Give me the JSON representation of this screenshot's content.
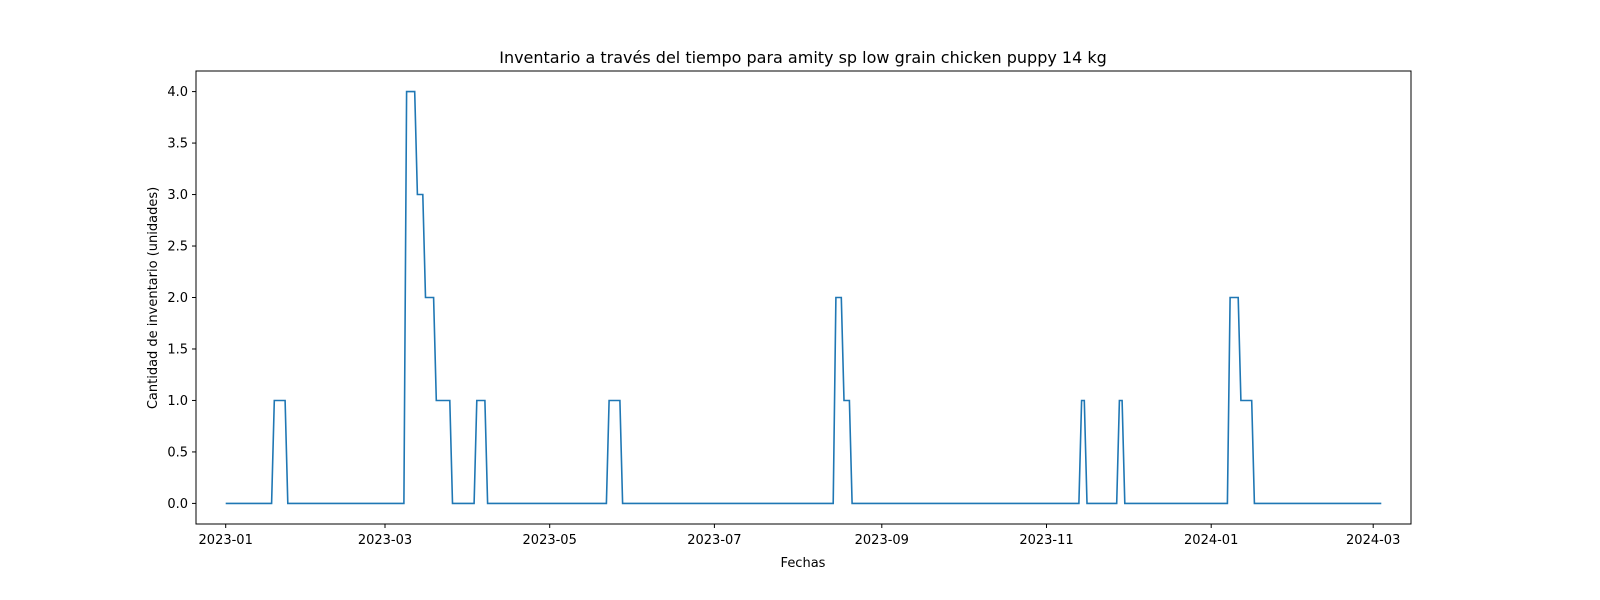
{
  "chart_data": {
    "type": "line",
    "title": "Inventario a través del tiempo para amity sp low grain chicken puppy 14 kg",
    "xlabel": "Fechas",
    "ylabel": "Cantidad de inventario (unidades)",
    "x_axis_type": "date",
    "xlim": [
      "2022-12-21",
      "2024-03-15"
    ],
    "ylim": [
      -0.2,
      4.2
    ],
    "x_ticks": [
      "2023-01-01",
      "2023-03-01",
      "2023-05-01",
      "2023-07-01",
      "2023-09-01",
      "2023-11-01",
      "2024-01-01",
      "2024-03-01"
    ],
    "x_tick_labels": [
      "2023-01",
      "2023-03",
      "2023-05",
      "2023-07",
      "2023-09",
      "2023-11",
      "2024-01",
      "2024-03"
    ],
    "y_ticks": [
      0.0,
      0.5,
      1.0,
      1.5,
      2.0,
      2.5,
      3.0,
      3.5,
      4.0
    ],
    "y_tick_labels": [
      "0.0",
      "0.5",
      "1.0",
      "1.5",
      "2.0",
      "2.5",
      "3.0",
      "3.5",
      "4.0"
    ],
    "grid": false,
    "series": [
      {
        "color": "#1f77b4",
        "points": [
          [
            "2023-01-01",
            0
          ],
          [
            "2023-01-18",
            0
          ],
          [
            "2023-01-19",
            1
          ],
          [
            "2023-01-23",
            1
          ],
          [
            "2023-01-24",
            0
          ],
          [
            "2023-03-08",
            0
          ],
          [
            "2023-03-09",
            4
          ],
          [
            "2023-03-12",
            4
          ],
          [
            "2023-03-13",
            3
          ],
          [
            "2023-03-15",
            3
          ],
          [
            "2023-03-16",
            2
          ],
          [
            "2023-03-19",
            2
          ],
          [
            "2023-03-20",
            1
          ],
          [
            "2023-03-25",
            1
          ],
          [
            "2023-03-26",
            0
          ],
          [
            "2023-04-03",
            0
          ],
          [
            "2023-04-04",
            1
          ],
          [
            "2023-04-07",
            1
          ],
          [
            "2023-04-08",
            0
          ],
          [
            "2023-05-22",
            0
          ],
          [
            "2023-05-23",
            1
          ],
          [
            "2023-05-27",
            1
          ],
          [
            "2023-05-28",
            0
          ],
          [
            "2023-08-14",
            0
          ],
          [
            "2023-08-15",
            2
          ],
          [
            "2023-08-17",
            2
          ],
          [
            "2023-08-18",
            1
          ],
          [
            "2023-08-20",
            1
          ],
          [
            "2023-08-21",
            0
          ],
          [
            "2023-11-13",
            0
          ],
          [
            "2023-11-14",
            1
          ],
          [
            "2023-11-15",
            1
          ],
          [
            "2023-11-16",
            0
          ],
          [
            "2023-11-27",
            0
          ],
          [
            "2023-11-28",
            1
          ],
          [
            "2023-11-29",
            1
          ],
          [
            "2023-11-30",
            0
          ],
          [
            "2024-01-07",
            0
          ],
          [
            "2024-01-08",
            2
          ],
          [
            "2024-01-11",
            2
          ],
          [
            "2024-01-12",
            1
          ],
          [
            "2024-01-16",
            1
          ],
          [
            "2024-01-17",
            0
          ],
          [
            "2024-03-04",
            0
          ]
        ]
      }
    ]
  }
}
